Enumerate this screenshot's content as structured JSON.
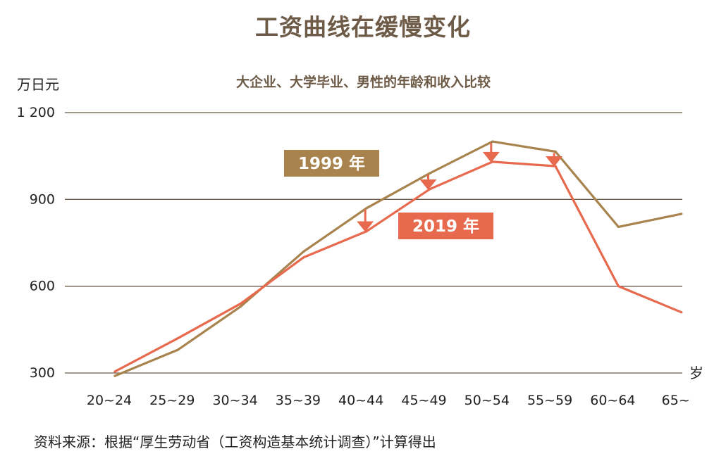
{
  "title": "工资曲线在缓慢变化",
  "subtitle": "大企业、大学毕业、男性的年龄和收入比较",
  "y_unit": "万日元",
  "x_unit": "岁",
  "source": "资料来源：根据“厚生劳动省（工资构造基本统计调查）”计算得出",
  "colors": {
    "s1999": "#a8834e",
    "s2019": "#e86a4e",
    "grid": "#6b5a4a",
    "text": "#222222",
    "title": "#6d5a47"
  },
  "chart_data": {
    "type": "line",
    "title": "工资曲线在缓慢变化",
    "subtitle": "大企业、大学毕业、男性的年龄和收入比较",
    "xlabel": "岁",
    "ylabel": "万日元",
    "categories": [
      "20~24",
      "25~29",
      "30~34",
      "35~39",
      "40~44",
      "45~49",
      "50~54",
      "55~59",
      "60~64",
      "65~"
    ],
    "y_ticks": [
      "1 200",
      "900",
      "600",
      "300"
    ],
    "ylim": [
      300,
      1200
    ],
    "grid": true,
    "series": [
      {
        "name": "1999 年",
        "values": [
          290,
          380,
          530,
          720,
          870,
          990,
          1100,
          1065,
          805,
          850
        ]
      },
      {
        "name": "2019 年",
        "values": [
          305,
          420,
          540,
          700,
          790,
          935,
          1030,
          1015,
          600,
          510
        ]
      }
    ],
    "decline_arrows": [
      "40~44",
      "45~49",
      "50~54",
      "55~59"
    ]
  }
}
